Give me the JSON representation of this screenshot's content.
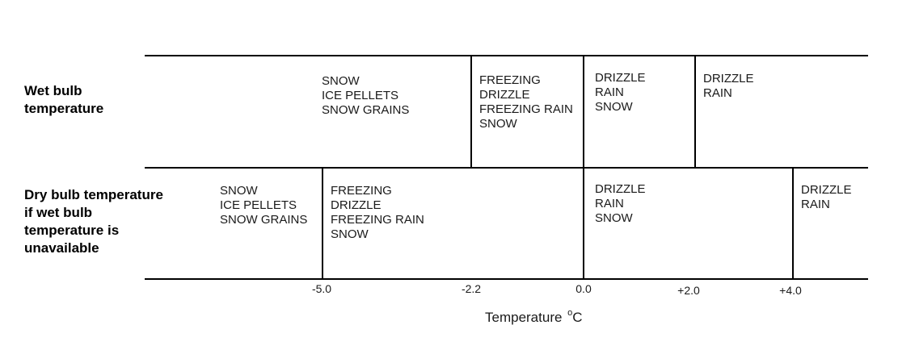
{
  "rows": {
    "wet": {
      "label": [
        "Wet bulb",
        "temperature"
      ],
      "cells": [
        [
          "SNOW",
          "ICE PELLETS",
          "SNOW GRAINS"
        ],
        [
          "FREEZING",
          "DRIZZLE",
          "FREEZING RAIN",
          "SNOW"
        ],
        [
          "DRIZZLE",
          "RAIN",
          "SNOW"
        ],
        [
          "DRIZZLE",
          "RAIN"
        ]
      ]
    },
    "dry": {
      "label": [
        "Dry bulb temperature",
        "if wet bulb",
        "temperature is",
        "unavailable"
      ],
      "cells": [
        [
          "SNOW",
          "ICE PELLETS",
          "SNOW GRAINS"
        ],
        [
          "FREEZING",
          "DRIZZLE",
          "FREEZING RAIN",
          "SNOW"
        ],
        [
          "DRIZZLE",
          "RAIN",
          "SNOW"
        ],
        [
          "DRIZZLE",
          "RAIN"
        ]
      ]
    }
  },
  "axis": {
    "ticks": [
      "-5.0",
      "-2.2",
      "0.0",
      "+2.0",
      "+4.0"
    ],
    "title": "Temperature",
    "unit_sup": "o",
    "unit": "C"
  }
}
